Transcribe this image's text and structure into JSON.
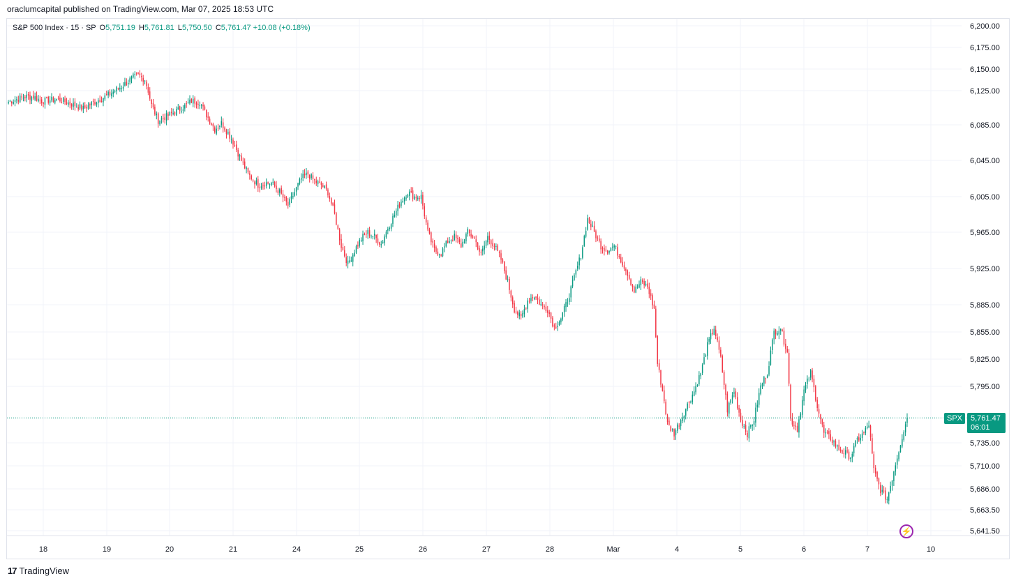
{
  "header": {
    "publisher": "oraclumcapital published on TradingView.com, Mar 07, 2025 18:53 UTC"
  },
  "legend": {
    "symbol": "S&P 500 Index · 15 · SP",
    "open_key": "O",
    "open": "5,751.19",
    "high_key": "H",
    "high": "5,761.81",
    "low_key": "L",
    "low": "5,750.50",
    "close_key": "C",
    "close": "5,761.47",
    "change": "+10.08 (+0.18%)"
  },
  "price_tag": {
    "symbol": "SPX",
    "price": "5,761.47",
    "countdown": "06:01"
  },
  "brand": {
    "name": "TradingView",
    "logo": "17"
  },
  "colors": {
    "up": "#089981",
    "down": "#f23645",
    "grid": "#f0f3fa",
    "last": "#089981"
  },
  "icons": {
    "bolt": "lightning-icon"
  },
  "chart_data": {
    "type": "candlestick",
    "interval": "15",
    "grid": true,
    "y_ticks": [
      "6,200.00",
      "6,175.00",
      "6,150.00",
      "6,125.00",
      "6,085.00",
      "6,045.00",
      "6,005.00",
      "5,965.00",
      "5,925.00",
      "5,885.00",
      "5,855.00",
      "5,825.00",
      "5,795.00",
      "5,735.00",
      "5,710.00",
      "5,686.00",
      "5,663.50",
      "5,641.50"
    ],
    "x_ticks": [
      "18",
      "19",
      "20",
      "21",
      "24",
      "25",
      "26",
      "27",
      "28",
      "Mar",
      "4",
      "5",
      "6",
      "7",
      "10"
    ],
    "last_price": 5761.47,
    "anchors": [
      [
        0,
        6112
      ],
      [
        10,
        6118
      ],
      [
        15,
        6118
      ],
      [
        20,
        6113
      ],
      [
        30,
        6115
      ],
      [
        40,
        6108
      ],
      [
        45,
        6104
      ],
      [
        52,
        6112
      ],
      [
        60,
        6120
      ],
      [
        68,
        6130
      ],
      [
        75,
        6140
      ],
      [
        78,
        6143
      ],
      [
        82,
        6138
      ],
      [
        84,
        6125
      ],
      [
        86,
        6108
      ],
      [
        90,
        6090
      ],
      [
        95,
        6095
      ],
      [
        100,
        6100
      ],
      [
        106,
        6107
      ],
      [
        110,
        6113
      ],
      [
        115,
        6112
      ],
      [
        118,
        6100
      ],
      [
        124,
        6080
      ],
      [
        128,
        6087
      ],
      [
        134,
        6070
      ],
      [
        140,
        6045
      ],
      [
        144,
        6030
      ],
      [
        150,
        6018
      ],
      [
        154,
        6020
      ],
      [
        158,
        6020
      ],
      [
        163,
        6010
      ],
      [
        168,
        5995
      ],
      [
        172,
        6010
      ],
      [
        176,
        6025
      ],
      [
        180,
        6030
      ],
      [
        184,
        6022
      ],
      [
        188,
        6018
      ],
      [
        192,
        6010
      ],
      [
        196,
        5985
      ],
      [
        200,
        5950
      ],
      [
        204,
        5930
      ],
      [
        208,
        5945
      ],
      [
        212,
        5958
      ],
      [
        216,
        5965
      ],
      [
        220,
        5960
      ],
      [
        224,
        5952
      ],
      [
        228,
        5970
      ],
      [
        232,
        5985
      ],
      [
        236,
        6000
      ],
      [
        240,
        6010
      ],
      [
        244,
        6005
      ],
      [
        248,
        6005
      ],
      [
        252,
        5965
      ],
      [
        256,
        5945
      ],
      [
        260,
        5942
      ],
      [
        264,
        5955
      ],
      [
        268,
        5960
      ],
      [
        272,
        5950
      ],
      [
        276,
        5965
      ],
      [
        280,
        5958
      ],
      [
        284,
        5940
      ],
      [
        288,
        5960
      ],
      [
        292,
        5950
      ],
      [
        296,
        5935
      ],
      [
        300,
        5910
      ],
      [
        304,
        5880
      ],
      [
        308,
        5870
      ],
      [
        312,
        5890
      ],
      [
        316,
        5895
      ],
      [
        320,
        5885
      ],
      [
        324,
        5880
      ],
      [
        328,
        5860
      ],
      [
        332,
        5870
      ],
      [
        336,
        5890
      ],
      [
        340,
        5915
      ],
      [
        344,
        5940
      ],
      [
        346,
        5960
      ],
      [
        348,
        5980
      ],
      [
        352,
        5965
      ],
      [
        356,
        5950
      ],
      [
        360,
        5945
      ],
      [
        364,
        5950
      ],
      [
        368,
        5935
      ],
      [
        372,
        5920
      ],
      [
        376,
        5900
      ],
      [
        380,
        5910
      ],
      [
        384,
        5905
      ],
      [
        388,
        5880
      ],
      [
        390,
        5820
      ],
      [
        392,
        5800
      ],
      [
        394,
        5780
      ],
      [
        396,
        5755
      ],
      [
        400,
        5745
      ],
      [
        404,
        5760
      ],
      [
        408,
        5775
      ],
      [
        412,
        5790
      ],
      [
        416,
        5810
      ],
      [
        420,
        5840
      ],
      [
        424,
        5860
      ],
      [
        428,
        5825
      ],
      [
        432,
        5770
      ],
      [
        436,
        5790
      ],
      [
        440,
        5760
      ],
      [
        444,
        5745
      ],
      [
        448,
        5760
      ],
      [
        452,
        5795
      ],
      [
        456,
        5810
      ],
      [
        460,
        5855
      ],
      [
        464,
        5860
      ],
      [
        466,
        5845
      ],
      [
        468,
        5835
      ],
      [
        470,
        5760
      ],
      [
        474,
        5750
      ],
      [
        478,
        5790
      ],
      [
        482,
        5810
      ],
      [
        486,
        5775
      ],
      [
        490,
        5745
      ],
      [
        494,
        5740
      ],
      [
        498,
        5730
      ],
      [
        502,
        5725
      ],
      [
        506,
        5720
      ],
      [
        510,
        5738
      ],
      [
        514,
        5745
      ],
      [
        517,
        5755
      ],
      [
        520,
        5705
      ],
      [
        524,
        5685
      ],
      [
        528,
        5675
      ],
      [
        532,
        5705
      ],
      [
        536,
        5735
      ],
      [
        540,
        5761.47
      ]
    ]
  }
}
